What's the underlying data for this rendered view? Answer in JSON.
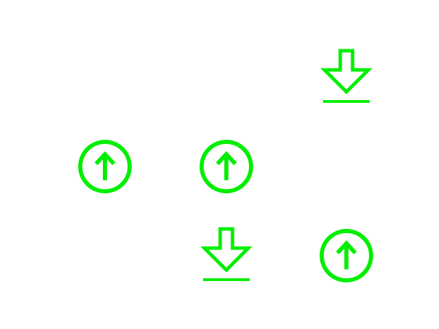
{
  "colors": {
    "background": "#ffffff",
    "icon": "#00ee00"
  },
  "icons": [
    {
      "id": "download-top",
      "icon": "download-icon"
    },
    {
      "id": "upload-left",
      "icon": "upload-circle-icon"
    },
    {
      "id": "upload-mid",
      "icon": "upload-circle-icon"
    },
    {
      "id": "download-bottom",
      "icon": "download-icon"
    },
    {
      "id": "upload-right",
      "icon": "upload-circle-icon"
    }
  ]
}
